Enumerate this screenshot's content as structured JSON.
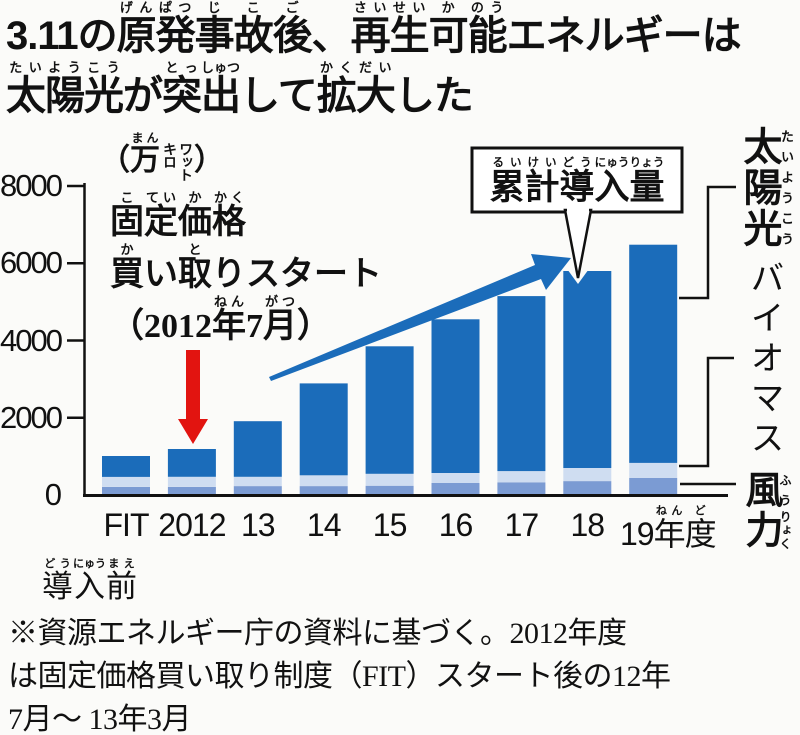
{
  "colors": {
    "solar": "#1b6cba",
    "biomass": "#cfddf1",
    "wind": "#7b9bd3",
    "red_arrow": "#e21410",
    "blue_arrow": "#1b6cba",
    "text": "#111111",
    "axis": "#111111",
    "background": "#fbfbf9"
  },
  "title": {
    "line1": [
      {
        "t": "3.11の",
        "r": ""
      },
      {
        "t": "原",
        "r": "げん"
      },
      {
        "t": "発",
        "r": "ぱつ"
      },
      {
        "t": "事",
        "r": "じ"
      },
      {
        "t": "故",
        "r": "こ"
      },
      {
        "t": "後",
        "r": "ご"
      },
      {
        "t": "、",
        "r": ""
      },
      {
        "t": "再",
        "r": "さい"
      },
      {
        "t": "生",
        "r": "せい"
      },
      {
        "t": "可",
        "r": "か"
      },
      {
        "t": "能",
        "r": "のう"
      },
      {
        "t": "エネルギーは",
        "r": ""
      }
    ],
    "line2": [
      {
        "t": "太",
        "r": "たい"
      },
      {
        "t": "陽",
        "r": "よう"
      },
      {
        "t": "光",
        "r": "こう"
      },
      {
        "t": "が",
        "r": ""
      },
      {
        "t": "突",
        "r": "とっ"
      },
      {
        "t": "出",
        "r": "しゅつ"
      },
      {
        "t": "して",
        "r": ""
      },
      {
        "t": "拡",
        "r": "かく"
      },
      {
        "t": "大",
        "r": "だい"
      },
      {
        "t": "した",
        "r": ""
      }
    ]
  },
  "unit": {
    "open": "（",
    "man": [
      {
        "t": "万",
        "r": "まん"
      }
    ],
    "small1": "キロ",
    "small2": "ワット",
    "close": "）"
  },
  "fit_annotation": {
    "lines": [
      [
        {
          "t": "固",
          "r": "こ"
        },
        {
          "t": "定",
          "r": "てい"
        },
        {
          "t": "価",
          "r": "か"
        },
        {
          "t": "格",
          "r": "かく"
        }
      ],
      [
        {
          "t": "買",
          "r": "か"
        },
        {
          "t": "い",
          "r": ""
        },
        {
          "t": "取",
          "r": "と"
        },
        {
          "t": "り",
          "r": ""
        },
        {
          "t": "スタート",
          "r": ""
        }
      ],
      [
        {
          "t": "（2012",
          "r": ""
        },
        {
          "t": "年",
          "r": "ねん"
        },
        {
          "t": "7",
          "r": ""
        },
        {
          "t": "月",
          "r": "がつ"
        },
        {
          "t": "）",
          "r": ""
        }
      ]
    ]
  },
  "callout": {
    "text": [
      {
        "t": "累",
        "r": "るい"
      },
      {
        "t": "計",
        "r": "けい"
      },
      {
        "t": "導",
        "r": "どう"
      },
      {
        "t": "入",
        "r": "にゅう"
      },
      {
        "t": "量",
        "r": "りょう"
      }
    ]
  },
  "legend": {
    "solar": [
      {
        "t": "太",
        "r": "たい"
      },
      {
        "t": "陽",
        "r": "よう"
      },
      {
        "t": "光",
        "r": "こう"
      }
    ],
    "biomass": [
      {
        "t": "バイオマス",
        "r": ""
      }
    ],
    "wind": [
      {
        "t": "風",
        "r": "ふう"
      },
      {
        "t": "力",
        "r": "りょく"
      }
    ]
  },
  "x_axis": {
    "labels": [
      [
        {
          "t": "FIT",
          "r": ""
        }
      ],
      [
        {
          "t": "2012",
          "r": ""
        }
      ],
      [
        {
          "t": "13",
          "r": ""
        }
      ],
      [
        {
          "t": "14",
          "r": ""
        }
      ],
      [
        {
          "t": "15",
          "r": ""
        }
      ],
      [
        {
          "t": "16",
          "r": ""
        }
      ],
      [
        {
          "t": "17",
          "r": ""
        }
      ],
      [
        {
          "t": "18",
          "r": ""
        }
      ],
      [
        {
          "t": "19",
          "r": ""
        },
        {
          "t": "年",
          "r": "ねん"
        },
        {
          "t": "度",
          "r": "ど"
        }
      ]
    ],
    "pre_label": [
      {
        "t": "導",
        "r": "どう"
      },
      {
        "t": "入",
        "r": "にゅう"
      },
      {
        "t": "前",
        "r": "まえ"
      }
    ]
  },
  "footnote": {
    "lines": [
      "※資源エネルギー庁の資料に基づく。2012年度",
      "は固定価格買い取り制度（FIT）スタート後の12年",
      "7月～ 13年3月"
    ]
  },
  "chart_data": {
    "type": "bar",
    "stacked": true,
    "title": "3.11の原発事故後、再生可能エネルギーは太陽光が突出して拡大した",
    "unit_label": "（万キロワット）",
    "categories": [
      "FIT導入前",
      "2012",
      "13",
      "14",
      "15",
      "16",
      "17",
      "18",
      "19年度"
    ],
    "series": [
      {
        "name": "風力",
        "color": "#7b9bd3",
        "values": [
          210,
          210,
          230,
          230,
          240,
          310,
          330,
          360,
          440
        ]
      },
      {
        "name": "バイオマス",
        "color": "#cfddf1",
        "values": [
          260,
          260,
          240,
          280,
          310,
          260,
          290,
          340,
          390
        ]
      },
      {
        "name": "太陽光",
        "color": "#1b6cba",
        "values": [
          540,
          720,
          1440,
          2380,
          3300,
          3980,
          4530,
          5100,
          5650
        ]
      }
    ],
    "totals_approx": [
      1010,
      1190,
      1910,
      2890,
      3850,
      4550,
      5150,
      5800,
      6480
    ],
    "ylim": [
      0,
      8000
    ],
    "yticks": [
      0,
      2000,
      4000,
      6000,
      8000
    ],
    "grid": false,
    "legend_position": "right",
    "annotations": [
      "固定価格買い取りスタート（2012年7月）",
      "累計導入量"
    ]
  }
}
